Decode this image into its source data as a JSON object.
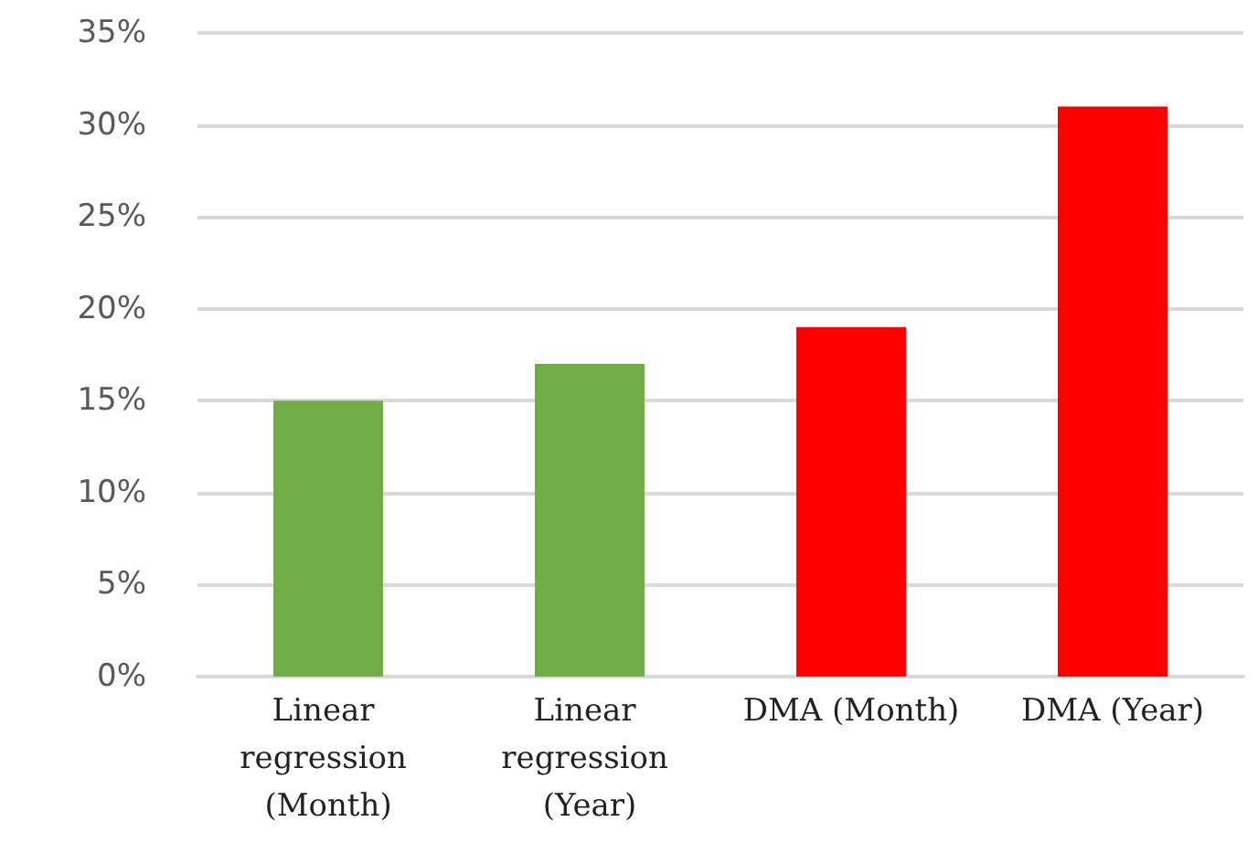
{
  "chart_data": {
    "type": "bar",
    "categories": [
      "Linear regression (Month)",
      "Linear regression (Year)",
      "DMA (Month)",
      "DMA (Year)"
    ],
    "values": [
      15,
      17,
      19,
      31
    ],
    "colors": [
      "#70ad47",
      "#70ad47",
      "#ff0000",
      "#ff0000"
    ],
    "ylim": [
      0,
      35
    ],
    "yticks": [
      {
        "value": 0,
        "label": "0%"
      },
      {
        "value": 5,
        "label": "5%"
      },
      {
        "value": 10,
        "label": "10%"
      },
      {
        "value": 15,
        "label": "15%"
      },
      {
        "value": 20,
        "label": "20%"
      },
      {
        "value": 25,
        "label": "25%"
      },
      {
        "value": 30,
        "label": "30%"
      },
      {
        "value": 35,
        "label": "35%"
      }
    ],
    "grid": "y"
  }
}
